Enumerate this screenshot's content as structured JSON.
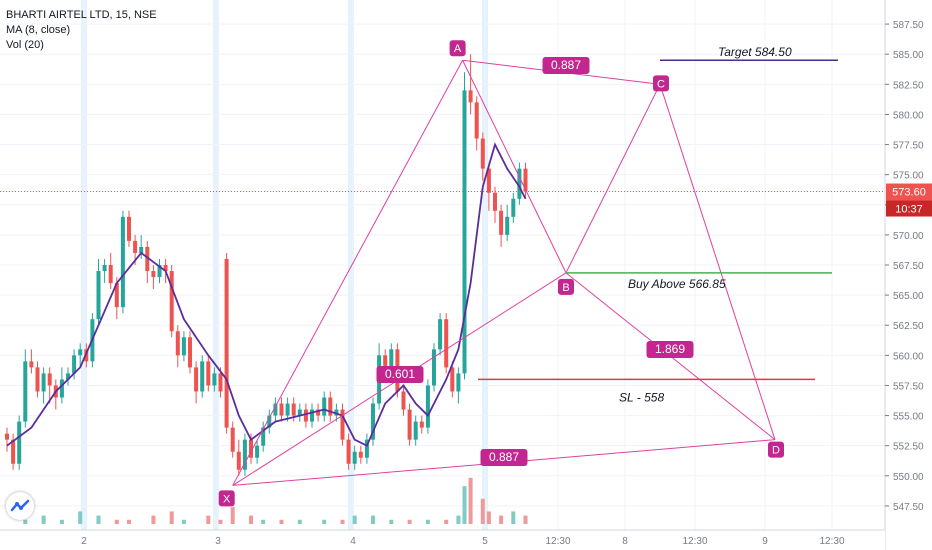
{
  "legend": {
    "title": "BHARTI AIRTEL LTD, 15, NSE",
    "ma": "MA (8, close)",
    "vol": "Vol (20)"
  },
  "price_badge": {
    "value": "573.60",
    "time": "10:37"
  },
  "colors": {
    "up": "#26a69a",
    "down": "#ef5350",
    "ma": "#5b2c9b",
    "pattern": "#e040a0",
    "pattern_label_bg": "#c2278f",
    "target_line": "#4a2c8a",
    "buy_line": "#4caf50",
    "sl_line": "#e53935",
    "session_band": "#e3f2fd"
  },
  "chart_data": {
    "type": "candlestick",
    "title": "BHARTI AIRTEL LTD, 15, NSE",
    "ylim": [
      545.5,
      589.5
    ],
    "y_ticks": [
      547.5,
      550.0,
      552.5,
      555.0,
      557.5,
      560.0,
      562.5,
      565.0,
      567.5,
      570.0,
      572.5,
      575.0,
      577.5,
      580.0,
      582.5,
      585.0,
      587.5
    ],
    "x_ticks": [
      "2",
      "3",
      "4",
      "5",
      "12:30",
      "8",
      "12:30",
      "9",
      "12:30"
    ],
    "last_price": 573.6,
    "session_starts": [
      "2",
      "3",
      "4",
      "5"
    ],
    "candles": [
      [
        553.5,
        553.0,
        554.0,
        552.0
      ],
      [
        553.0,
        551.0,
        553.5,
        550.5
      ],
      [
        551.0,
        554.5,
        555.0,
        550.5
      ],
      [
        554.5,
        559.5,
        560.5,
        554.0
      ],
      [
        559.5,
        559.0,
        560.5,
        558.5
      ],
      [
        559.0,
        557.0,
        559.5,
        556.5
      ],
      [
        557.0,
        558.5,
        559.0,
        556.0
      ],
      [
        558.5,
        557.5,
        559.0,
        556.0
      ],
      [
        557.5,
        556.5,
        558.0,
        555.5
      ],
      [
        556.5,
        558.0,
        559.0,
        556.0
      ],
      [
        558.0,
        558.5,
        559.0,
        557.5
      ],
      [
        558.5,
        560.0,
        560.5,
        558.0
      ],
      [
        560.0,
        560.5,
        561.0,
        559.0
      ],
      [
        560.5,
        559.5,
        561.0,
        559.0
      ],
      [
        559.5,
        563.0,
        563.5,
        559.0
      ],
      [
        563.0,
        567.0,
        568.0,
        562.5
      ],
      [
        567.0,
        567.5,
        568.0,
        566.0
      ],
      [
        567.5,
        566.0,
        568.5,
        565.5
      ],
      [
        566.0,
        564.0,
        566.5,
        563.0
      ],
      [
        564.0,
        571.5,
        572.0,
        563.5
      ],
      [
        571.5,
        569.5,
        572.0,
        569.0
      ],
      [
        569.5,
        568.5,
        570.0,
        567.5
      ],
      [
        568.5,
        569.0,
        570.0,
        568.0
      ],
      [
        569.0,
        567.0,
        569.5,
        566.0
      ],
      [
        567.0,
        566.5,
        567.5,
        565.5
      ],
      [
        566.5,
        567.5,
        568.0,
        566.0
      ],
      [
        567.5,
        567.0,
        568.0,
        566.0
      ],
      [
        567.0,
        562.0,
        567.5,
        561.5
      ],
      [
        562.0,
        560.0,
        562.5,
        559.0
      ],
      [
        560.0,
        561.5,
        562.0,
        559.5
      ],
      [
        561.5,
        559.0,
        562.0,
        558.5
      ],
      [
        559.0,
        557.0,
        559.5,
        556.0
      ],
      [
        557.0,
        559.5,
        560.0,
        556.5
      ],
      [
        559.5,
        557.5,
        560.0,
        557.0
      ],
      [
        557.5,
        558.5,
        559.0,
        557.0
      ],
      [
        558.5,
        557.0,
        559.0,
        556.5
      ],
      [
        568.0,
        554.0,
        568.5,
        553.5
      ],
      [
        554.0,
        552.0,
        554.5,
        551.5
      ],
      [
        552.0,
        550.5,
        553.0,
        550.0
      ],
      [
        550.5,
        553.0,
        553.5,
        550.0
      ],
      [
        553.0,
        551.5,
        553.5,
        551.0
      ],
      [
        551.5,
        552.5,
        553.0,
        551.0
      ],
      [
        552.5,
        554.0,
        554.5,
        552.0
      ],
      [
        554.0,
        555.0,
        555.5,
        553.5
      ],
      [
        555.0,
        556.0,
        556.5,
        554.5
      ],
      [
        556.0,
        555.0,
        556.5,
        554.5
      ],
      [
        555.0,
        556.0,
        556.5,
        554.5
      ],
      [
        556.0,
        555.0,
        556.5,
        554.5
      ],
      [
        555.0,
        555.5,
        556.0,
        554.5
      ],
      [
        555.5,
        554.5,
        556.0,
        554.0
      ],
      [
        554.5,
        555.5,
        556.0,
        554.0
      ],
      [
        555.5,
        555.0,
        556.0,
        554.5
      ],
      [
        555.0,
        556.5,
        557.0,
        554.5
      ],
      [
        556.5,
        555.0,
        557.0,
        554.5
      ],
      [
        555.0,
        555.5,
        556.0,
        554.5
      ],
      [
        555.5,
        553.0,
        556.0,
        552.5
      ],
      [
        553.0,
        551.0,
        553.5,
        550.5
      ],
      [
        551.0,
        552.0,
        552.5,
        550.5
      ],
      [
        552.0,
        551.5,
        552.5,
        551.0
      ],
      [
        551.5,
        553.0,
        553.5,
        551.0
      ],
      [
        553.0,
        556.0,
        556.5,
        552.5
      ],
      [
        556.0,
        560.0,
        561.0,
        555.5
      ],
      [
        560.0,
        559.0,
        560.5,
        558.5
      ],
      [
        559.0,
        560.5,
        561.0,
        558.5
      ],
      [
        560.5,
        557.0,
        561.0,
        556.5
      ],
      [
        557.0,
        555.5,
        557.5,
        555.0
      ],
      [
        555.5,
        553.0,
        556.0,
        552.5
      ],
      [
        553.0,
        554.5,
        555.0,
        552.5
      ],
      [
        554.5,
        554.0,
        555.0,
        553.5
      ],
      [
        554.0,
        557.5,
        558.0,
        553.5
      ],
      [
        557.5,
        560.5,
        561.0,
        557.0
      ],
      [
        560.5,
        563.0,
        563.5,
        560.0
      ],
      [
        563.0,
        559.0,
        563.5,
        558.5
      ],
      [
        559.0,
        557.0,
        559.5,
        556.5
      ],
      [
        557.0,
        558.5,
        559.0,
        556.0
      ],
      [
        558.5,
        582.0,
        583.5,
        558.0
      ],
      [
        582.0,
        581.0,
        585.0,
        580.0
      ],
      [
        581.0,
        578.0,
        581.5,
        577.0
      ],
      [
        578.0,
        575.5,
        578.5,
        574.5
      ],
      [
        575.5,
        573.5,
        576.0,
        572.0
      ],
      [
        573.5,
        572.0,
        574.0,
        571.0
      ],
      [
        572.0,
        570.0,
        572.5,
        569.0
      ],
      [
        570.0,
        571.5,
        572.5,
        569.5
      ],
      [
        571.5,
        573.0,
        573.5,
        571.0
      ],
      [
        573.0,
        575.5,
        576.0,
        572.5
      ],
      [
        575.5,
        573.6,
        576.0,
        573.0
      ]
    ],
    "ma": {
      "name": "MA (8, close)",
      "points": [
        [
          0,
          552.5
        ],
        [
          4,
          554.0
        ],
        [
          8,
          557.0
        ],
        [
          12,
          559.0
        ],
        [
          15,
          562.5
        ],
        [
          18,
          566.0
        ],
        [
          22,
          568.5
        ],
        [
          26,
          567.0
        ],
        [
          29,
          563.0
        ],
        [
          33,
          560.0
        ],
        [
          36,
          558.0
        ],
        [
          38,
          555.0
        ],
        [
          40,
          553.0
        ],
        [
          44,
          554.5
        ],
        [
          48,
          555.0
        ],
        [
          52,
          555.5
        ],
        [
          55,
          555.0
        ],
        [
          57,
          553.0
        ],
        [
          59,
          552.5
        ],
        [
          62,
          556.0
        ],
        [
          65,
          557.5
        ],
        [
          67,
          556.0
        ],
        [
          69,
          555.0
        ],
        [
          72,
          558.0
        ],
        [
          74,
          560.5
        ],
        [
          76,
          566.0
        ],
        [
          78,
          574.0
        ],
        [
          80,
          577.5
        ],
        [
          82,
          575.5
        ],
        [
          84,
          574.0
        ],
        [
          85,
          573.0
        ]
      ]
    },
    "volume": {
      "name": "Vol (20)",
      "bars": [
        [
          3,
          1
        ],
        [
          6,
          2
        ],
        [
          9,
          1
        ],
        [
          12,
          3
        ],
        [
          15,
          2
        ],
        [
          18,
          1
        ],
        [
          20,
          1
        ],
        [
          24,
          2
        ],
        [
          27,
          3
        ],
        [
          29,
          1
        ],
        [
          33,
          2
        ],
        [
          35,
          1
        ],
        [
          37,
          4
        ],
        [
          40,
          2
        ],
        [
          42,
          1
        ],
        [
          45,
          1
        ],
        [
          48,
          1
        ],
        [
          52,
          1
        ],
        [
          55,
          1
        ],
        [
          57,
          2
        ],
        [
          60,
          2
        ],
        [
          63,
          1
        ],
        [
          66,
          1
        ],
        [
          69,
          1
        ],
        [
          72,
          1
        ],
        [
          74,
          2
        ],
        [
          75,
          9
        ],
        [
          76,
          11
        ],
        [
          78,
          6
        ],
        [
          79,
          3
        ],
        [
          81,
          2
        ],
        [
          83,
          3
        ],
        [
          85,
          2
        ]
      ]
    },
    "annotations": {
      "pattern_points": {
        "X": {
          "label": "X",
          "price": 549.2
        },
        "A": {
          "label": "A",
          "price": 584.5
        },
        "B": {
          "label": "B",
          "price": 566.85
        },
        "C": {
          "label": "C",
          "price": 582.5
        },
        "D": {
          "label": "D",
          "price": 553.0
        }
      },
      "ratio_labels": {
        "xb": "0.601",
        "ac": "0.887",
        "bd": "1.869",
        "xd": "0.887"
      },
      "lines": {
        "target": {
          "label": "Target 584.50",
          "price": 584.5
        },
        "buy": {
          "label": "Buy Above 566.85",
          "price": 566.85
        },
        "sl": {
          "label": "SL - 558",
          "price": 558.0
        }
      }
    }
  }
}
